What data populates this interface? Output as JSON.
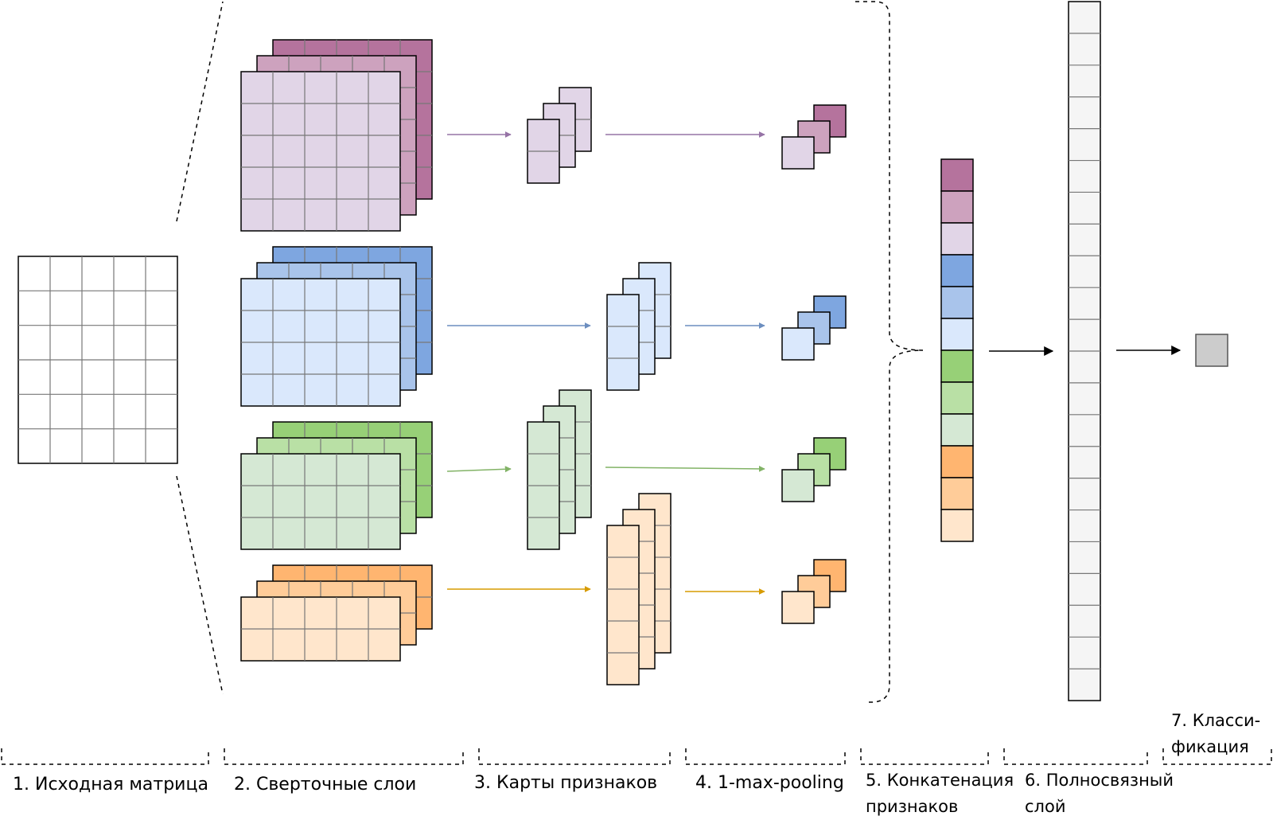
{
  "labels": {
    "step1": "1. Исходная матрица",
    "step2": "2. Сверточные слои",
    "step3": "3. Карты признаков",
    "step4": "4. 1-max-pooling",
    "step5_line1": "5. Конкатенация",
    "step5_line2": "признаков",
    "step6_line1": "6. Полносвязный",
    "step6_line2": "слой",
    "step7_line1": "7. Класси-",
    "step7_line2": "фикация"
  },
  "colors": {
    "purple": {
      "dark": "#b5739d",
      "mid": "#cda2be",
      "light": "#e1d5e7",
      "arrow": "#9673a6"
    },
    "blue": {
      "dark": "#7ea6e0",
      "mid": "#a9c4eb",
      "light": "#dae8fc",
      "arrow": "#6c8ebf"
    },
    "green": {
      "dark": "#97d077",
      "mid": "#b9e0a5",
      "light": "#d5e8d4",
      "arrow": "#82b366"
    },
    "orange": {
      "dark": "#ffb570",
      "mid": "#ffcc99",
      "light": "#ffe6cc",
      "arrow": "#d79b00"
    },
    "fc_fill": "#f5f5f5",
    "output_fill": "#cccccc",
    "grid_line": "#777777"
  }
}
